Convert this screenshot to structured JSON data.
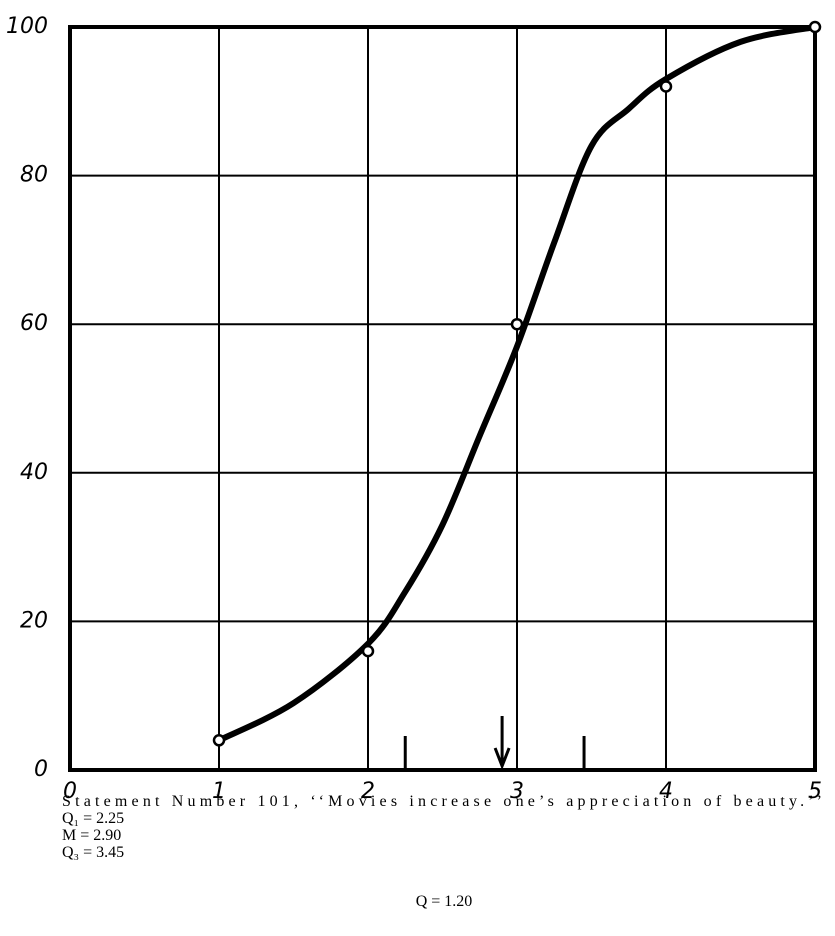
{
  "chart_data": {
    "type": "line",
    "title": "Statement Number 101, ‘‘Movies increase one’s appreciation of beauty.’’",
    "footnote": "Q = 1.20",
    "xlim": [
      0,
      5
    ],
    "ylim": [
      0,
      100
    ],
    "xticks": [
      0,
      1,
      2,
      3,
      4,
      5
    ],
    "yticks": [
      0,
      20,
      40,
      60,
      80,
      100
    ],
    "grid": true,
    "color": "#000000",
    "points": {
      "x": [
        1,
        2,
        3,
        4,
        5
      ],
      "values": [
        4,
        16,
        60,
        92,
        100
      ]
    },
    "curve": {
      "x": [
        1,
        1.5,
        2,
        2.25,
        2.5,
        2.75,
        3,
        3.25,
        3.5,
        3.75,
        4,
        4.5,
        5
      ],
      "values": [
        4,
        9,
        17,
        24,
        33,
        45,
        57,
        71,
        84,
        89,
        93,
        98,
        100
      ]
    },
    "annotations": [
      {
        "text": "Q₁ = 2.25",
        "x": 2.25,
        "marker": "line"
      },
      {
        "text": "M = 2.90",
        "x": 2.9,
        "marker": "arrow"
      },
      {
        "text": "Q₃ = 3.45",
        "x": 3.45,
        "marker": "line"
      }
    ]
  }
}
